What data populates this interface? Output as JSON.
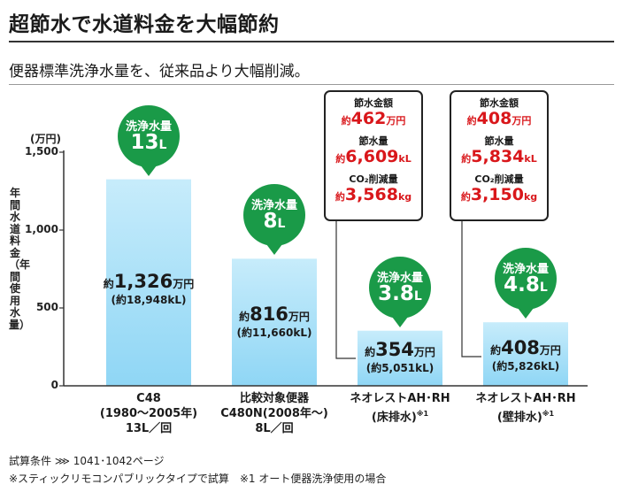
{
  "title": "超節水で水道料金を大幅節約",
  "subtitle": "便器標準洗浄水量を、従来品より大幅削減。",
  "footnotes": [
    "試算条件 ⋙ 1041･1042ページ",
    "※スティックリモコンパブリックタイプで試算　※1 オート便器洗浄使用の場合"
  ],
  "chart_data": {
    "type": "bar",
    "y_unit": "(万円)",
    "ylabel": "年間水道料金（年間使用水量）",
    "yticks": [
      "1,500",
      "1,000",
      "500",
      "0"
    ],
    "ylim": [
      0,
      1500
    ],
    "grid": false,
    "series_unit_water": "kL",
    "categories": [
      {
        "lines": [
          "C48",
          "(1980〜2005年)",
          "13L／回"
        ],
        "footnote_mark": ""
      },
      {
        "lines": [
          "比較対象便器",
          "C480N(2008年〜)",
          "8L／回"
        ],
        "footnote_mark": ""
      },
      {
        "lines": [
          "ネオレストAH･RH",
          "(床排水)"
        ],
        "footnote_mark": "※1"
      },
      {
        "lines": [
          "ネオレストAH･RH",
          "(壁排水)"
        ],
        "footnote_mark": "※1"
      }
    ],
    "values": [
      1326,
      816,
      354,
      408
    ],
    "value_labels": [
      {
        "prefix": "約",
        "num": "1,326",
        "unit": "万円",
        "sub": "(約18,948kL)"
      },
      {
        "prefix": "約",
        "num": "816",
        "unit": "万円",
        "sub": "(約11,660kL)"
      },
      {
        "prefix": "約",
        "num": "354",
        "unit": "万円",
        "sub": "(約5,051kL)"
      },
      {
        "prefix": "約",
        "num": "408",
        "unit": "万円",
        "sub": "(約5,826kL)"
      }
    ],
    "flush_bubbles": [
      {
        "label": "洗浄水量",
        "value": "13",
        "unit": "L"
      },
      {
        "label": "洗浄水量",
        "value": "8",
        "unit": "L"
      },
      {
        "label": "洗浄水量",
        "value": "3.8",
        "unit": "L"
      },
      {
        "label": "洗浄水量",
        "value": "4.8",
        "unit": "L"
      }
    ],
    "savings": [
      {
        "money_label": "節水金額",
        "money": "462",
        "money_unit": "万円",
        "water_label": "節水量",
        "water": "6,609",
        "water_unit": "kL",
        "co2_label": "CO₂削減量",
        "co2": "3,568",
        "co2_unit": "kg",
        "prefix": "約"
      },
      {
        "money_label": "節水金額",
        "money": "408",
        "money_unit": "万円",
        "water_label": "節水量",
        "water": "5,834",
        "water_unit": "kL",
        "co2_label": "CO₂削減量",
        "co2": "3,150",
        "co2_unit": "kg",
        "prefix": "約"
      }
    ],
    "colors": {
      "bar_top": "#c7ecfb",
      "bar_bottom": "#8fd6f5",
      "bubble": "#1a9a48",
      "savings_text": "#d9171b"
    }
  }
}
